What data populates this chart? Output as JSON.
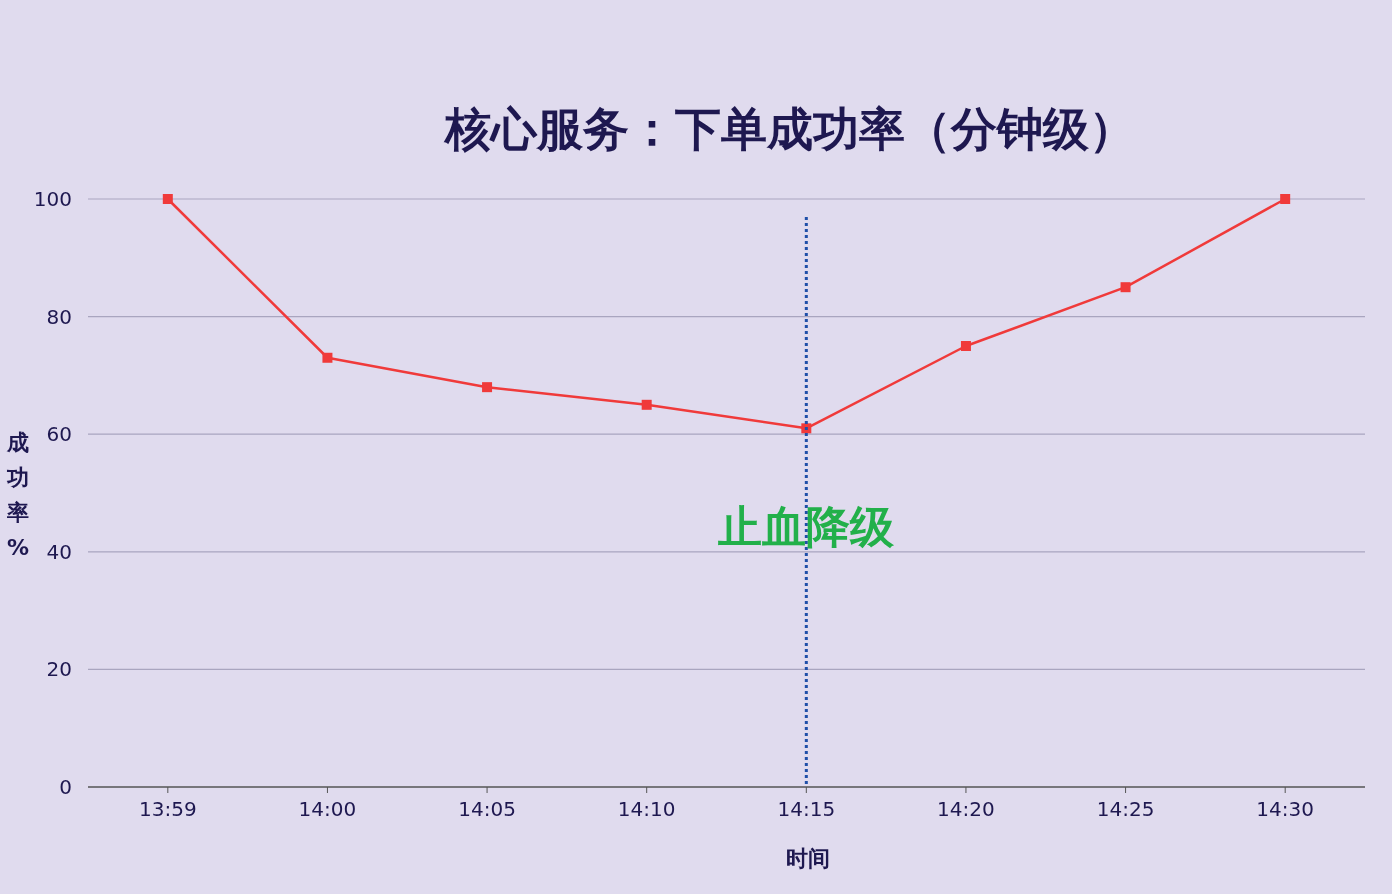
{
  "chart_data": {
    "type": "line",
    "title": "核心服务：下单成功率（分钟级）",
    "xlabel": "时间",
    "ylabel": "成功率%",
    "categories": [
      "13:59",
      "14:00",
      "14:05",
      "14:10",
      "14:15",
      "14:20",
      "14:25",
      "14:30"
    ],
    "series": [
      {
        "color": "#f03a3a",
        "values": [
          100,
          73,
          68,
          65,
          61,
          75,
          85,
          100
        ]
      }
    ],
    "ylim": [
      0,
      100
    ],
    "yticks": [
      0,
      20,
      40,
      60,
      80,
      100
    ],
    "grid": "y",
    "marker": "square",
    "line_style": "solid",
    "ref_lines": [
      {
        "axis": "x",
        "value": "14:15",
        "label": "止血降级",
        "color": "#1f4fa8",
        "line_style": "dotted"
      }
    ]
  }
}
